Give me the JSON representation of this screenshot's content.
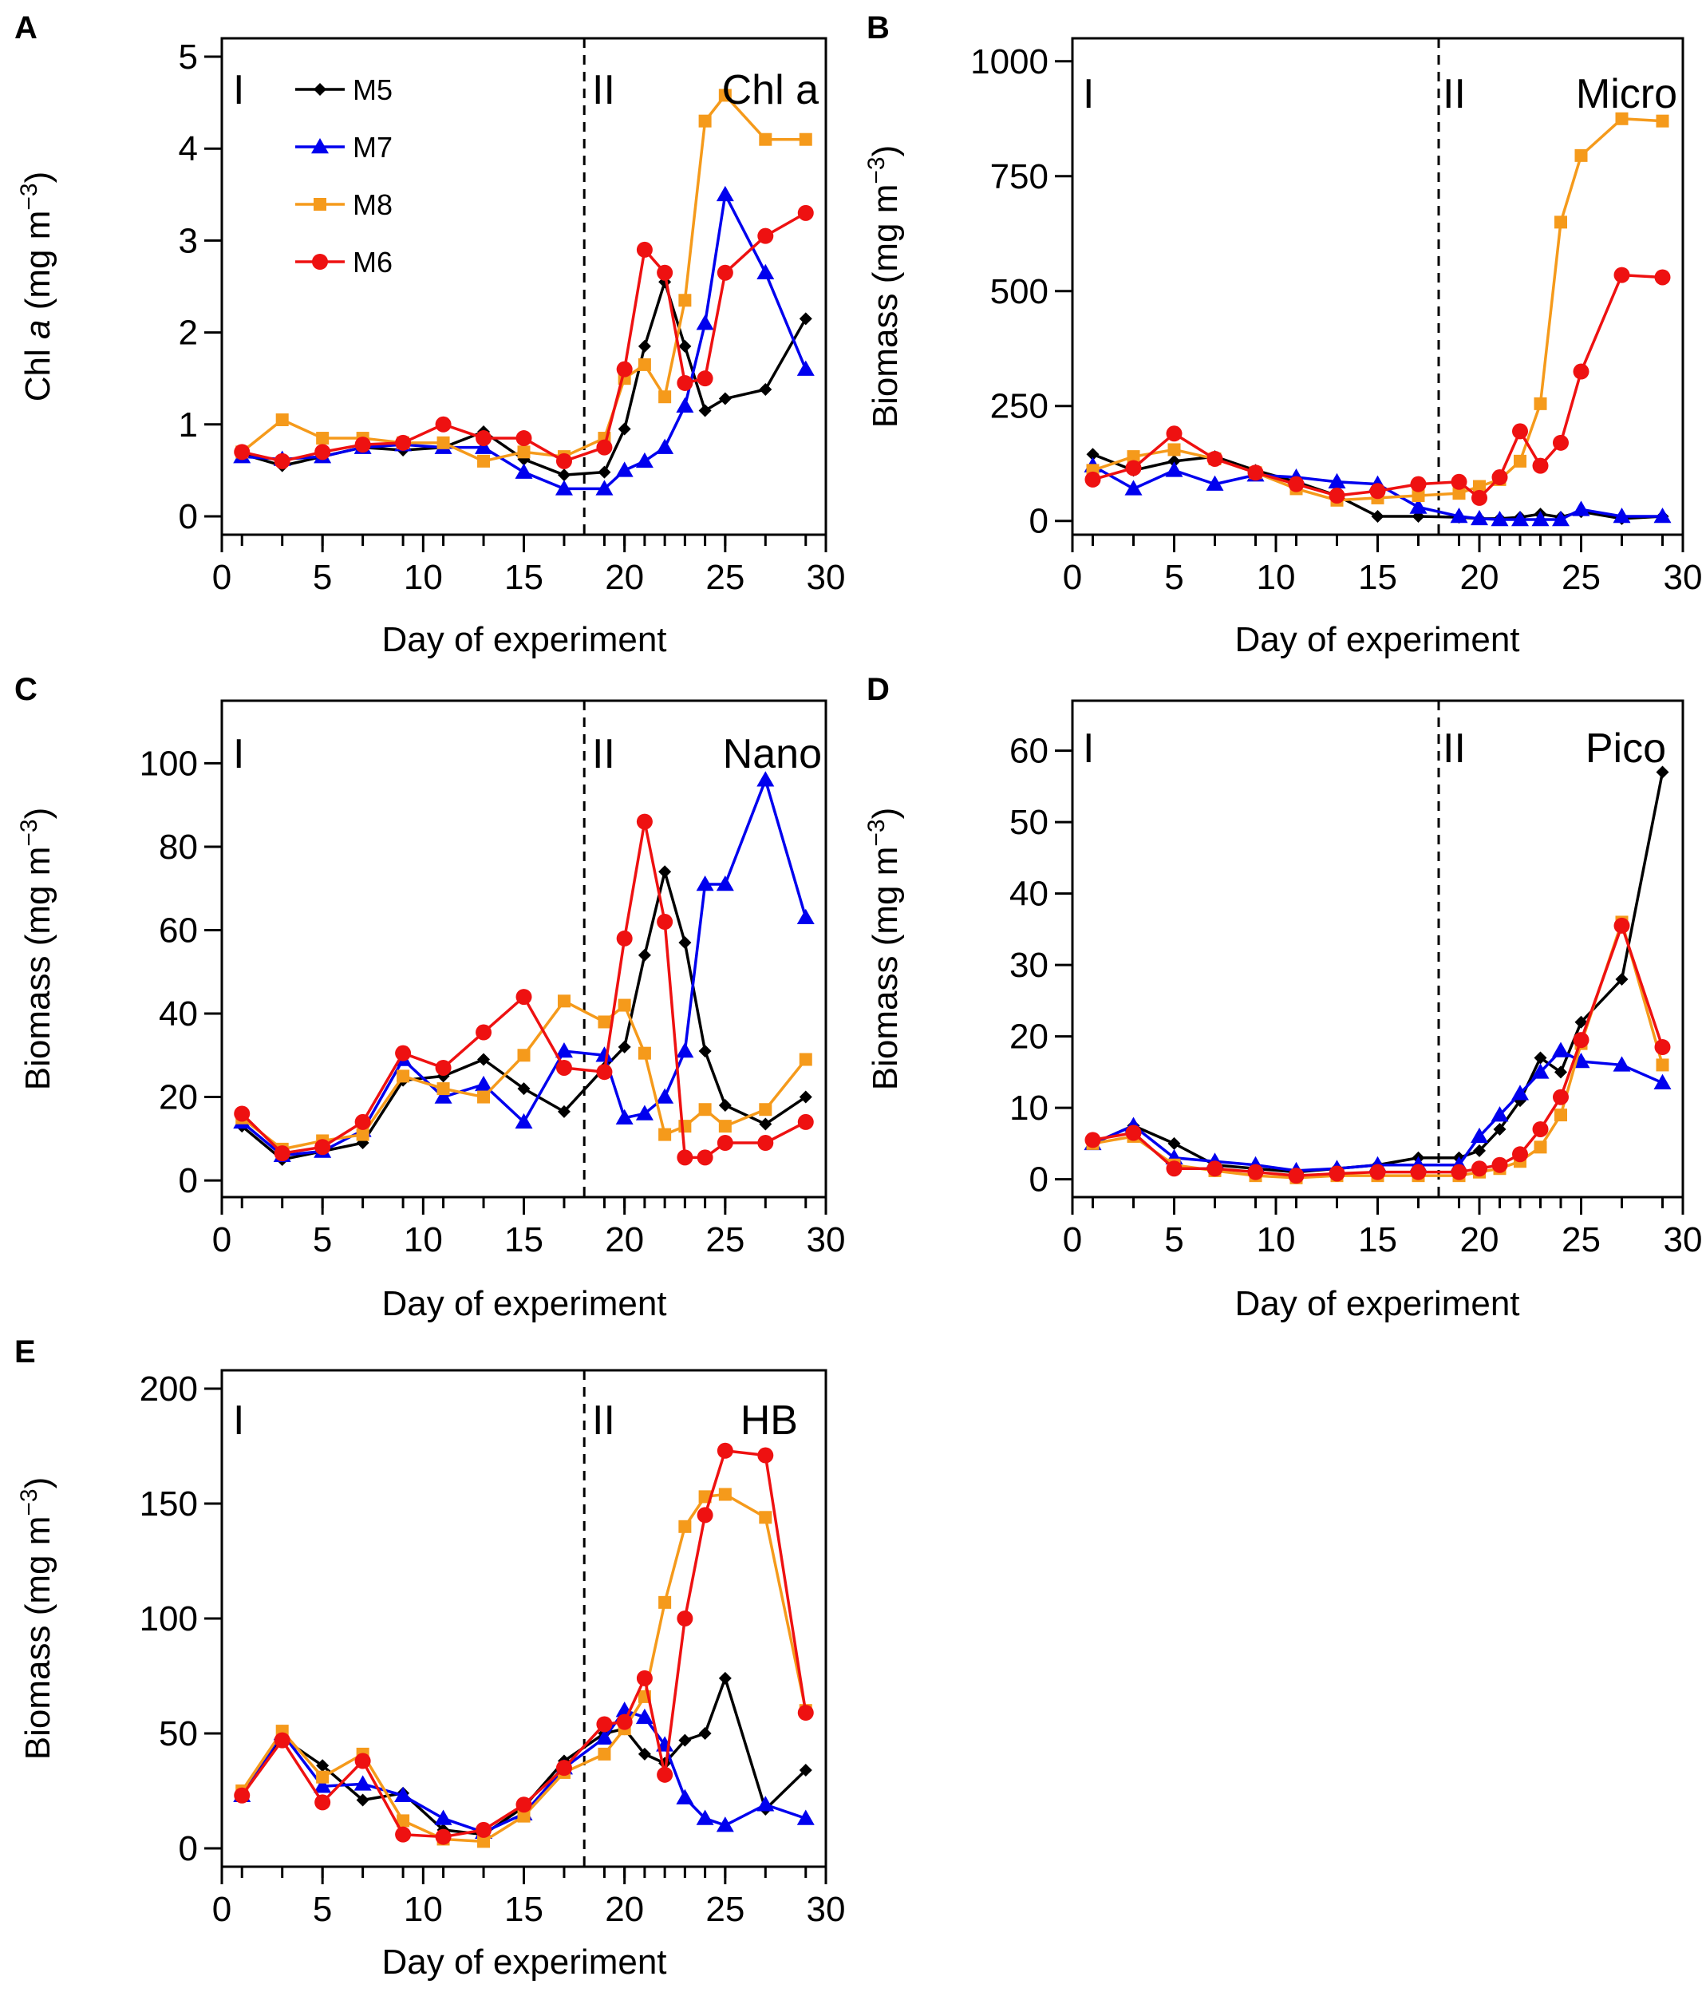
{
  "legend": {
    "M5": {
      "label": "M5",
      "color": "#000000",
      "marker": "diamond"
    },
    "M7": {
      "label": "M7",
      "color": "#0000ee",
      "marker": "triangle"
    },
    "M8": {
      "label": "M8",
      "color": "#f59a1b",
      "marker": "square"
    },
    "M6": {
      "label": "M6",
      "color": "#ee1111",
      "marker": "circle"
    }
  },
  "legend_order": [
    "M5",
    "M7",
    "M8",
    "M6"
  ],
  "chart_data": [
    {
      "type": "line",
      "panel": "A",
      "title": "Chl a",
      "xlabel": "Day of experiment",
      "ylabel": "Chl a (mg m⁻³)",
      "xlim": [
        0,
        30
      ],
      "ylim": [
        -0.2,
        5.2
      ],
      "xticks": [
        0,
        5,
        10,
        15,
        20,
        25,
        30
      ],
      "yticks": [
        0,
        1,
        2,
        3,
        4,
        5
      ],
      "phase_divider_x": 18,
      "phase_labels": [
        "I",
        "II"
      ],
      "x": [
        1,
        3,
        5,
        7,
        9,
        11,
        13,
        15,
        17,
        19,
        20,
        21,
        22,
        23,
        24,
        25,
        27,
        29
      ],
      "series": [
        {
          "name": "M5",
          "values": [
            0.68,
            0.55,
            0.65,
            0.75,
            0.72,
            0.75,
            0.92,
            0.62,
            0.45,
            0.48,
            0.95,
            1.85,
            2.55,
            1.85,
            1.15,
            1.28,
            1.38,
            2.15
          ]
        },
        {
          "name": "M7",
          "values": [
            0.65,
            0.62,
            0.65,
            0.75,
            0.78,
            0.75,
            0.75,
            0.48,
            0.3,
            0.3,
            0.5,
            0.6,
            0.75,
            1.2,
            2.1,
            3.5,
            2.65,
            1.6
          ]
        },
        {
          "name": "M8",
          "values": [
            0.7,
            1.05,
            0.85,
            0.85,
            0.8,
            0.8,
            0.6,
            0.7,
            0.65,
            0.85,
            1.5,
            1.65,
            1.3,
            2.35,
            4.3,
            4.58,
            4.1,
            4.1
          ]
        },
        {
          "name": "M6",
          "values": [
            0.7,
            0.6,
            0.7,
            0.78,
            0.8,
            1.0,
            0.85,
            0.85,
            0.6,
            0.75,
            1.6,
            2.9,
            2.65,
            1.45,
            1.5,
            2.65,
            3.05,
            3.3
          ]
        }
      ]
    },
    {
      "type": "line",
      "panel": "B",
      "title": "Micro",
      "xlabel": "Day of experiment",
      "ylabel": "Biomass (mg m⁻³)",
      "xlim": [
        0,
        30
      ],
      "ylim": [
        -30,
        1050
      ],
      "xticks": [
        0,
        5,
        10,
        15,
        20,
        25,
        30
      ],
      "yticks": [
        0,
        250,
        500,
        750,
        1000
      ],
      "phase_divider_x": 18,
      "phase_labels": [
        "I",
        "II"
      ],
      "x": [
        1,
        3,
        5,
        7,
        9,
        11,
        13,
        15,
        17,
        19,
        20,
        21,
        22,
        23,
        24,
        25,
        27,
        29
      ],
      "series": [
        {
          "name": "M5",
          "values": [
            145,
            110,
            130,
            140,
            110,
            85,
            55,
            10,
            10,
            8,
            5,
            5,
            8,
            15,
            8,
            20,
            5,
            10
          ]
        },
        {
          "name": "M7",
          "values": [
            120,
            70,
            110,
            80,
            100,
            95,
            85,
            80,
            30,
            10,
            5,
            3,
            3,
            3,
            3,
            25,
            10,
            10
          ]
        },
        {
          "name": "M8",
          "values": [
            110,
            140,
            155,
            135,
            105,
            70,
            45,
            50,
            55,
            60,
            75,
            90,
            130,
            255,
            650,
            795,
            875,
            870
          ]
        },
        {
          "name": "M6",
          "values": [
            90,
            115,
            190,
            135,
            105,
            80,
            55,
            65,
            80,
            85,
            50,
            95,
            195,
            120,
            170,
            325,
            535,
            530
          ]
        }
      ]
    },
    {
      "type": "line",
      "panel": "C",
      "title": "Nano",
      "xlabel": "Day of experiment",
      "ylabel": "Biomass (mg m⁻³)",
      "xlim": [
        0,
        30
      ],
      "ylim": [
        -4,
        115
      ],
      "xticks": [
        0,
        5,
        10,
        15,
        20,
        25,
        30
      ],
      "yticks": [
        0,
        20,
        40,
        60,
        80,
        100
      ],
      "phase_divider_x": 18,
      "phase_labels": [
        "I",
        "II"
      ],
      "x": [
        1,
        3,
        5,
        7,
        9,
        11,
        13,
        15,
        17,
        19,
        20,
        21,
        22,
        23,
        24,
        25,
        27,
        29
      ],
      "series": [
        {
          "name": "M5",
          "values": [
            13,
            5,
            7,
            9,
            24,
            25,
            29,
            22,
            16.5,
            27,
            32,
            54,
            74,
            57,
            31,
            18,
            13.5,
            20
          ]
        },
        {
          "name": "M7",
          "values": [
            14,
            6,
            7,
            12,
            29,
            20,
            23,
            14,
            31,
            30,
            15,
            16,
            20,
            31,
            71,
            71,
            96,
            63
          ]
        },
        {
          "name": "M8",
          "values": [
            15,
            7.5,
            9.5,
            11,
            25,
            22,
            20,
            30,
            43,
            38,
            42,
            30.5,
            11,
            13,
            17,
            13,
            17,
            29
          ]
        },
        {
          "name": "M6",
          "values": [
            16,
            6.5,
            8,
            14,
            30.5,
            27,
            35.5,
            44,
            27,
            26,
            58,
            86,
            62,
            5.5,
            5.5,
            9,
            9,
            14
          ]
        }
      ]
    },
    {
      "type": "line",
      "panel": "D",
      "title": "Pico",
      "xlabel": "Day of experiment",
      "ylabel": "Biomass (mg m⁻³)",
      "xlim": [
        0,
        30
      ],
      "ylim": [
        -2.5,
        67
      ],
      "xticks": [
        0,
        5,
        10,
        15,
        20,
        25,
        30
      ],
      "yticks": [
        0,
        10,
        20,
        30,
        40,
        50,
        60
      ],
      "phase_divider_x": 18,
      "phase_labels": [
        "I",
        "II"
      ],
      "x": [
        1,
        3,
        5,
        7,
        9,
        11,
        13,
        15,
        17,
        19,
        20,
        21,
        22,
        23,
        24,
        25,
        27,
        29
      ],
      "series": [
        {
          "name": "M5",
          "values": [
            5,
            7.5,
            5,
            2,
            1.5,
            1,
            1.5,
            2,
            3,
            3,
            4,
            7,
            11,
            17,
            15,
            22,
            28,
            57
          ]
        },
        {
          "name": "M7",
          "values": [
            5,
            7.5,
            3,
            2.5,
            2,
            1.2,
            1.5,
            2,
            2,
            2,
            6,
            9,
            12,
            15,
            18,
            16.5,
            16,
            13.5
          ]
        },
        {
          "name": "M8",
          "values": [
            5,
            6,
            2,
            1.2,
            0.5,
            0.2,
            0.5,
            0.5,
            0.5,
            0.5,
            1,
            1.5,
            2.5,
            4.5,
            9,
            19,
            36,
            16
          ]
        },
        {
          "name": "M6",
          "values": [
            5.5,
            6.5,
            1.5,
            1.5,
            1,
            0.5,
            0.8,
            1,
            1,
            1,
            1.5,
            2,
            3.5,
            7,
            11.5,
            19.5,
            35.5,
            18.5
          ]
        }
      ]
    },
    {
      "type": "line",
      "panel": "E",
      "title": "HB",
      "xlabel": "Day of experiment",
      "ylabel": "Biomass (mg m⁻³)",
      "xlim": [
        0,
        30
      ],
      "ylim": [
        -8,
        208
      ],
      "xticks": [
        0,
        5,
        10,
        15,
        20,
        25,
        30
      ],
      "yticks": [
        0,
        50,
        100,
        150,
        200
      ],
      "phase_divider_x": 18,
      "phase_labels": [
        "I",
        "II"
      ],
      "x": [
        1,
        3,
        5,
        7,
        9,
        11,
        13,
        15,
        17,
        19,
        20,
        21,
        22,
        23,
        24,
        25,
        27,
        29
      ],
      "series": [
        {
          "name": "M5",
          "values": [
            24,
            48,
            36,
            21,
            24,
            8,
            6,
            18,
            38,
            50,
            52,
            41,
            37,
            47,
            50,
            74,
            17,
            34
          ]
        },
        {
          "name": "M7",
          "values": [
            23,
            50,
            27,
            28,
            23,
            13,
            7,
            15,
            35,
            48,
            60,
            57,
            45,
            22,
            13,
            10,
            19,
            13
          ]
        },
        {
          "name": "M8",
          "values": [
            25,
            51,
            31,
            41,
            12,
            4,
            3,
            14,
            33,
            41,
            52,
            66,
            107,
            140,
            153,
            154,
            144,
            60
          ]
        },
        {
          "name": "M6",
          "values": [
            23,
            47,
            20,
            38,
            6,
            5,
            8,
            19,
            35,
            54,
            55,
            74,
            32,
            100,
            145,
            173,
            171,
            59
          ]
        }
      ]
    }
  ]
}
